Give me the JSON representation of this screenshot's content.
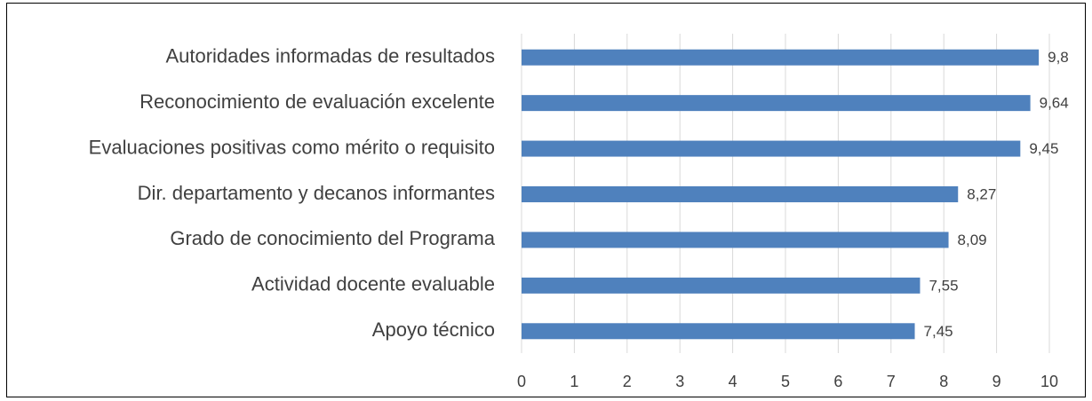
{
  "chart_data": {
    "type": "barh",
    "categories": [
      "Autoridades informadas de resultados",
      "Reconocimiento de evaluación excelente",
      "Evaluaciones positivas como mérito o requisito",
      "Dir. departamento y decanos informantes",
      "Grado de conocimiento del Programa",
      "Actividad docente evaluable",
      "Apoyo técnico"
    ],
    "values": [
      9.8,
      9.64,
      9.45,
      8.27,
      8.09,
      7.55,
      7.45
    ],
    "value_labels": [
      "9,8",
      "9,64",
      "9,45",
      "8,27",
      "8,09",
      "7,55",
      "7,45"
    ],
    "color": "#4f81bd",
    "xlim": [
      0,
      10
    ],
    "xticks": [
      0,
      1,
      2,
      3,
      4,
      5,
      6,
      7,
      8,
      9,
      10
    ],
    "grid": true
  }
}
